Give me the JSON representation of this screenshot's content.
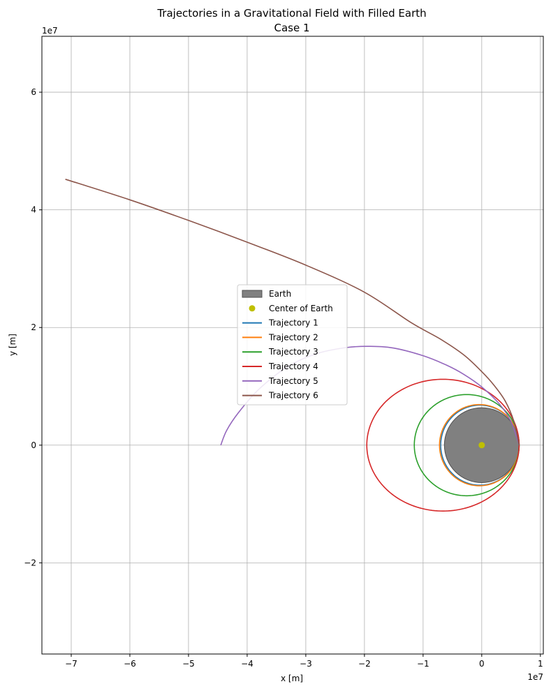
{
  "chart_data": {
    "type": "line",
    "title": "Trajectories in a Gravitational Field with Filled Earth",
    "subtitle": "Case 1",
    "xlabel": "x [m]",
    "ylabel": "y [m]",
    "x_offset_label": "1e7",
    "y_offset_label": "1e7",
    "xlim": [
      -75000000.0,
      10500000.0
    ],
    "ylim": [
      -35500000.0,
      69500000.0
    ],
    "x_ticks": [
      -70000000.0,
      -60000000.0,
      -50000000.0,
      -40000000.0,
      -30000000.0,
      -20000000.0,
      -10000000.0,
      0,
      10000000.0
    ],
    "x_tick_labels": [
      "−7",
      "−6",
      "−5",
      "−4",
      "−3",
      "−2",
      "−1",
      "0",
      "1"
    ],
    "y_ticks": [
      -20000000.0,
      0,
      20000000.0,
      40000000.0,
      60000000.0
    ],
    "y_tick_labels": [
      "−2",
      "0",
      "2",
      "4",
      "6"
    ],
    "grid": true,
    "legend_position": "center-left",
    "earth": {
      "name": "Earth",
      "radius": 6371000.0,
      "fill_color": "#808080",
      "edge_color": "#505050"
    },
    "center": {
      "name": "Center of Earth",
      "x": 0,
      "y": 0,
      "color": "#bfbf00"
    },
    "series": [
      {
        "name": "Trajectory 1",
        "color": "#1f77b4",
        "kind": "ellipse",
        "periapsis_x": 6371000.0,
        "apoapsis_x": -7000000.0,
        "semi_minor": 6800000.0
      },
      {
        "name": "Trajectory 2",
        "color": "#ff7f0e",
        "kind": "ellipse",
        "periapsis_x": 6371000.0,
        "apoapsis_x": -7200000.0,
        "semi_minor": 6900000.0
      },
      {
        "name": "Trajectory 3",
        "color": "#2ca02c",
        "kind": "ellipse",
        "periapsis_x": 6371000.0,
        "apoapsis_x": -11500000.0,
        "semi_minor": 8600000.0
      },
      {
        "name": "Trajectory 4",
        "color": "#d62728",
        "kind": "ellipse",
        "periapsis_x": 6371000.0,
        "apoapsis_x": -19600000.0,
        "semi_minor": 11200000.0
      },
      {
        "name": "Trajectory 5",
        "color": "#9467bd",
        "kind": "path",
        "x": [
          6371000.0,
          5000000.0,
          3000000.0,
          0,
          -3000000.0,
          -6000000.0,
          -10000000.0,
          -15000000.0,
          -19000000.0,
          -23000000.0,
          -28000000.0,
          -33000000.0,
          -38000000.0,
          -41500000.0,
          -43500000.0,
          -44500000.0
        ],
        "y": [
          0,
          4000000.0,
          7000000.0,
          9900000.0,
          12000000.0,
          13600000.0,
          15200000.0,
          16500000.0,
          16800000.0,
          16600000.0,
          15600000.0,
          13400000.0,
          9500000.0,
          5500000.0,
          2500000.0,
          0
        ]
      },
      {
        "name": "Trajectory 6",
        "color": "#8c564b",
        "kind": "path",
        "x": [
          6371000.0,
          5500000.0,
          4000000.0,
          2000000.0,
          0,
          -3000000.0,
          -7000000.0,
          -12000000.0,
          -20000000.0,
          -30000000.0,
          -40000000.0,
          -50000000.0,
          -60000000.0,
          -71000000.0
        ],
        "y": [
          0,
          4000000.0,
          7500000.0,
          10300000.0,
          12500000.0,
          15300000.0,
          18000000.0,
          20800000.0,
          26000000.0,
          30600000.0,
          34500000.0,
          38200000.0,
          41700000.0,
          45200000.0
        ]
      }
    ]
  }
}
